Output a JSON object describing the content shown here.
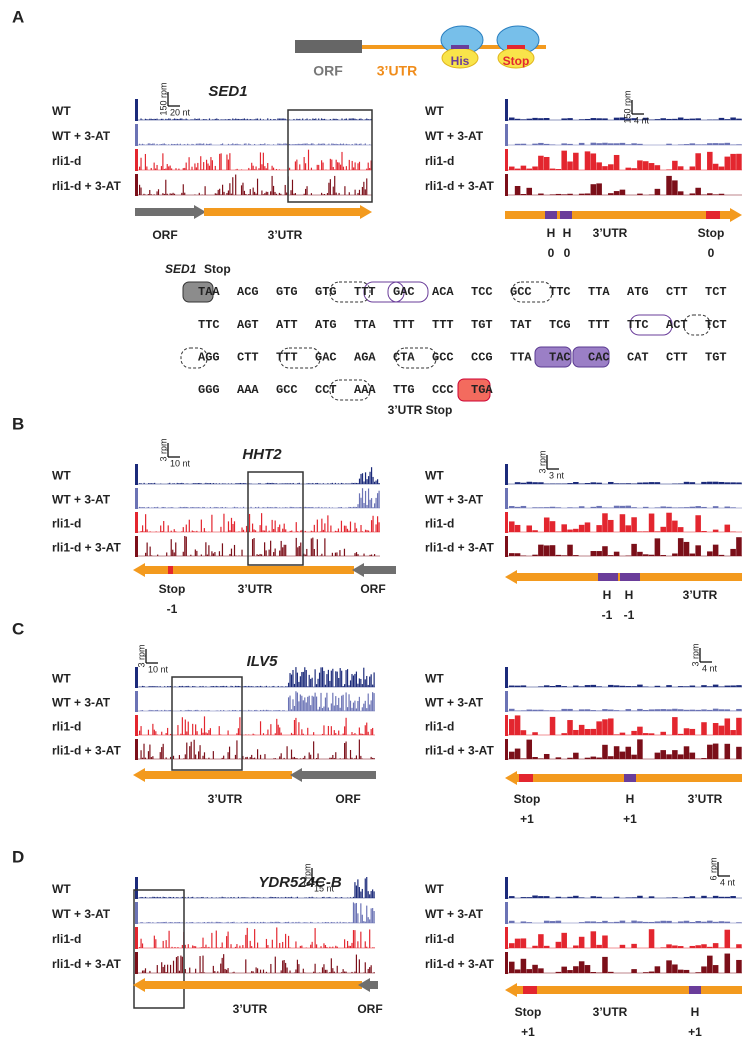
{
  "schematic": {
    "orf": "ORF",
    "utr": "3’UTR",
    "his": "His",
    "stop": "Stop"
  },
  "panels": [
    {
      "letter": "A",
      "gene": "SED1",
      "track_labels": [
        "WT",
        "WT + 3-AT",
        "rli1-d",
        "rli1-d + 3-AT"
      ],
      "left_scale": [
        "150 rpm",
        "20 nt"
      ],
      "left_labels": [
        "ORF",
        "3’UTR"
      ],
      "right_scale": [
        "150 rpm",
        "4 nt"
      ],
      "right_labels": [
        "H",
        "H",
        "3’UTR",
        "Stop",
        "0",
        "0",
        "0"
      ]
    },
    {
      "letter": "B",
      "gene": "HHT2",
      "track_labels": [
        "WT",
        "WT + 3-AT",
        "rli1-d",
        "rli1-d + 3-AT"
      ],
      "left_scale": [
        "3 rpm",
        "10 nt"
      ],
      "left_labels": [
        "Stop",
        "-1",
        "3’UTR",
        "ORF"
      ],
      "right_scale": [
        "3 rpm",
        "3 nt"
      ],
      "right_labels": [
        "H",
        "H",
        "3’UTR",
        "-1",
        "-1"
      ]
    },
    {
      "letter": "C",
      "gene": "ILV5",
      "track_labels": [
        "WT",
        "WT + 3-AT",
        "rli1-d",
        "rli1-d + 3-AT"
      ],
      "left_scale": [
        "3 rpm",
        "10 nt"
      ],
      "left_labels": [
        "3’UTR",
        "ORF"
      ],
      "right_scale": [
        "3 rpm",
        "4 nt"
      ],
      "right_labels": [
        "Stop",
        "H",
        "3’UTR",
        "+1",
        "+1"
      ]
    },
    {
      "letter": "D",
      "gene": "YDR524C-B",
      "track_labels": [
        "WT",
        "WT + 3-AT",
        "rli1-d",
        "rli1-d + 3-AT"
      ],
      "left_scale": [
        "6 rpm",
        "15 nt"
      ],
      "left_labels": [
        "3’UTR",
        "ORF"
      ],
      "right_scale": [
        "6 rpm",
        "4 nt"
      ],
      "right_labels": [
        "Stop",
        "3’UTR",
        "H",
        "+1",
        "+1"
      ]
    }
  ],
  "sequence": {
    "gene": "SED1",
    "stop_label": "Stop",
    "rows": [
      [
        "TAA",
        "ACG",
        "GTG",
        "GTG",
        "TTT",
        "GAC",
        "ACA",
        "TCC",
        "GCC",
        "TTC",
        "TTA",
        "ATG",
        "CTT",
        "TCT"
      ],
      [
        "TTC",
        "AGT",
        "ATT",
        "ATG",
        "TTA",
        "TTT",
        "TTT",
        "TGT",
        "TAT",
        "TCG",
        "TTT",
        "TTC",
        "ACT",
        "TCT"
      ],
      [
        "AGG",
        "CTT",
        "TTT",
        "GAC",
        "AGA",
        "CTA",
        "GCC",
        "CCG",
        "TTA",
        "TAC",
        "CAC",
        "CAT",
        "CTT",
        "TGT"
      ],
      [
        "GGG",
        "AAA",
        "GCC",
        "CCT",
        "AAA",
        "TTG",
        "CCC",
        "TGA"
      ]
    ],
    "utr_stop_label": "3’UTR Stop"
  }
}
